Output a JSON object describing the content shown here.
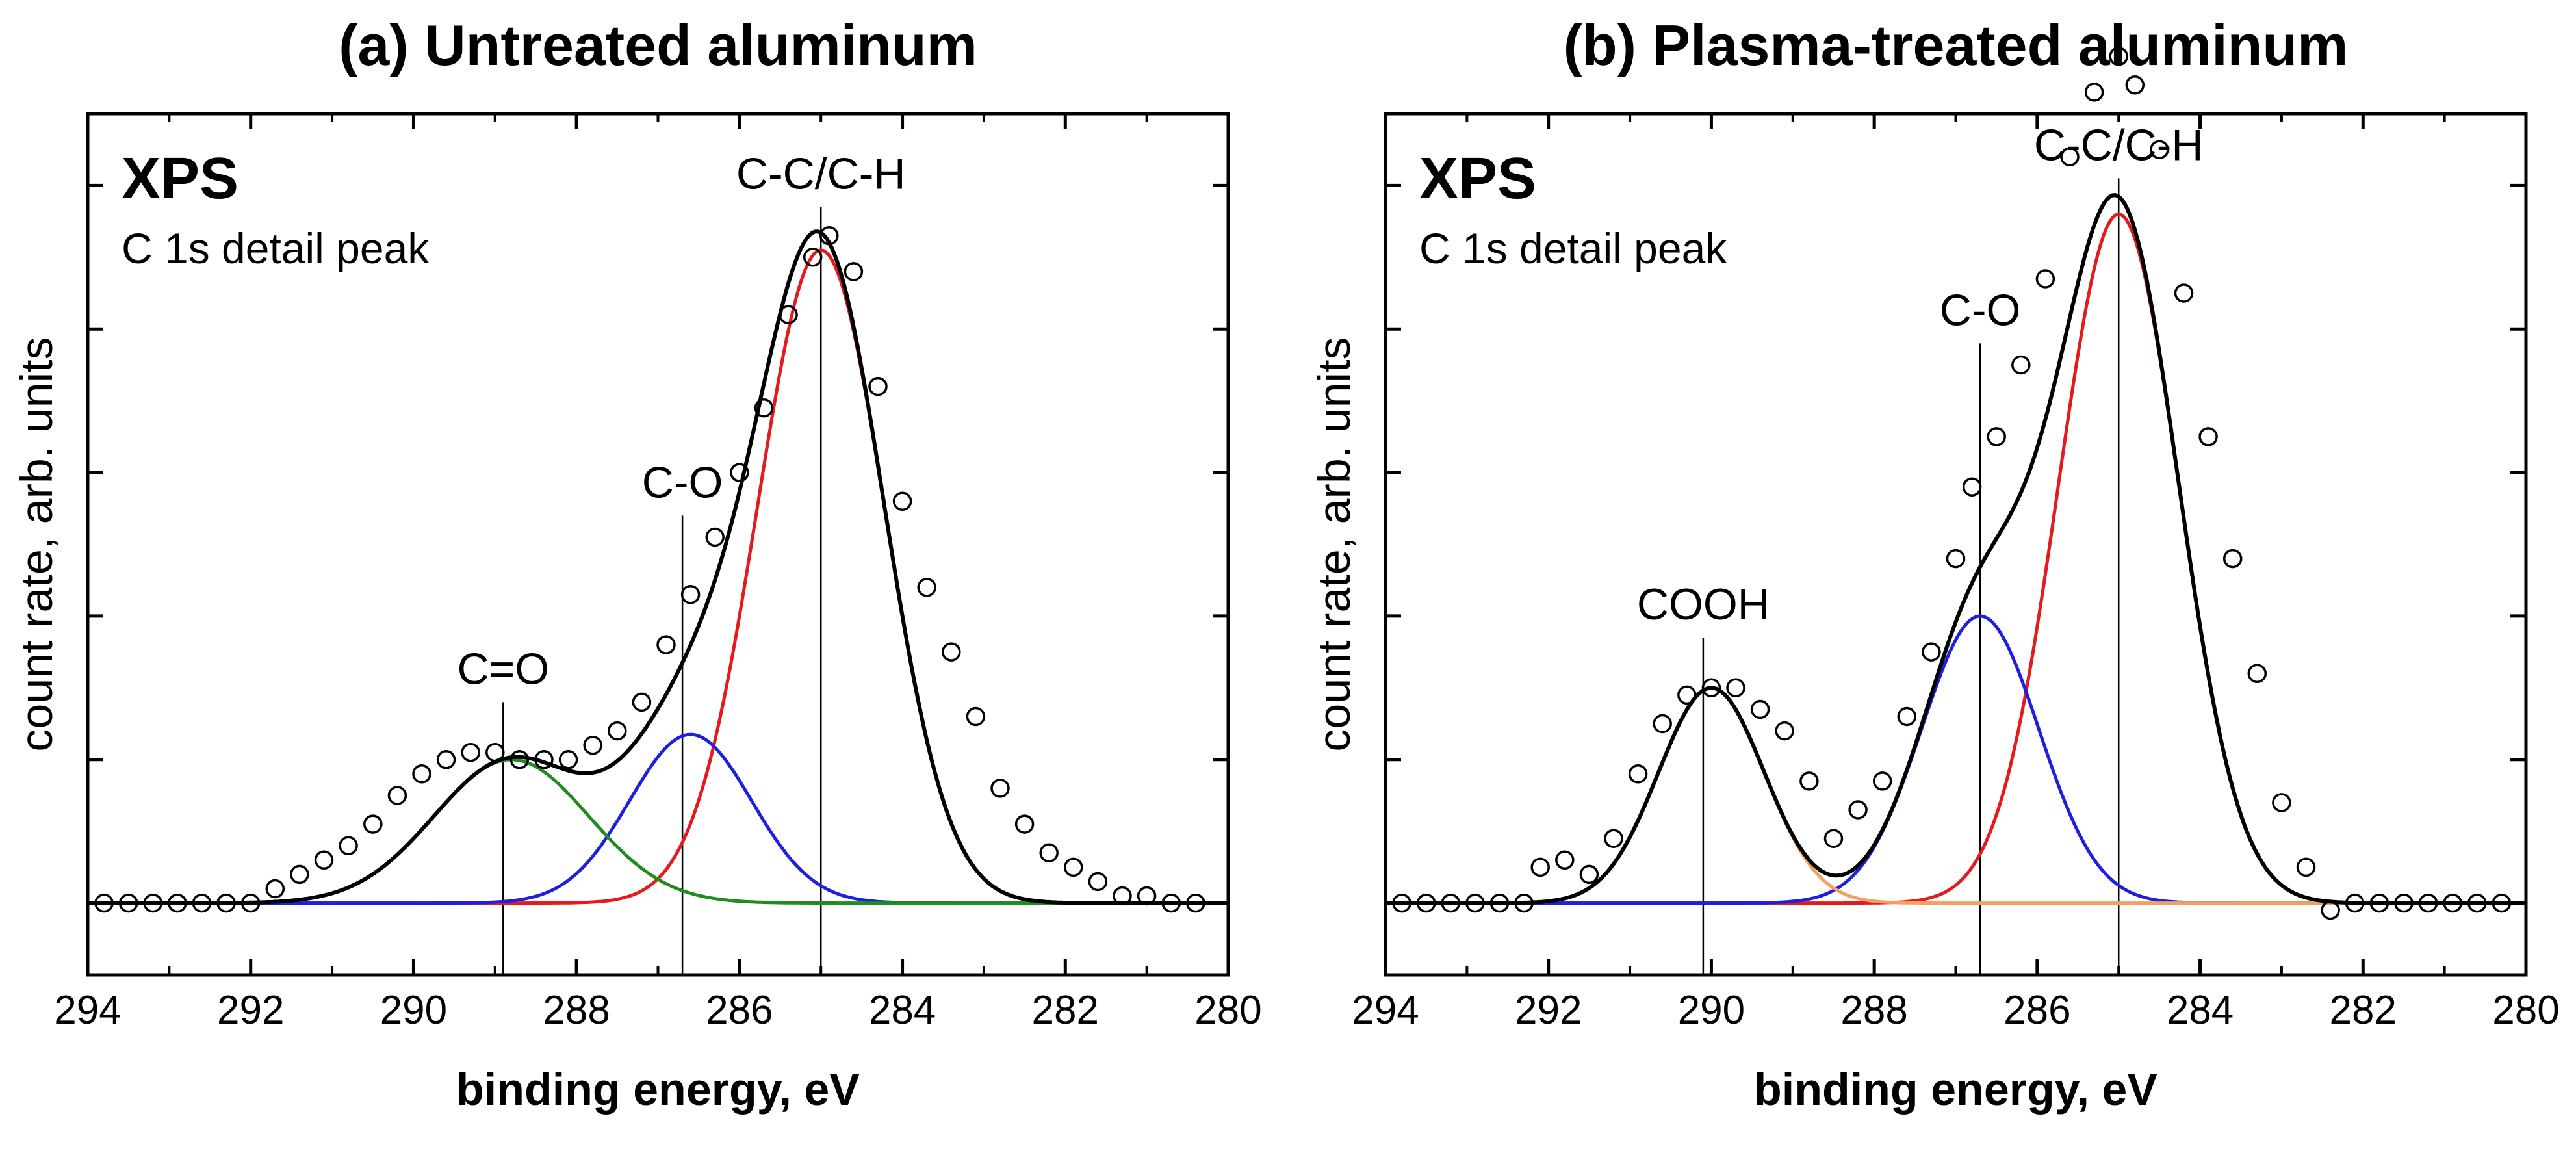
{
  "chart_data": [
    {
      "type": "line",
      "title": "(a) Untreated aluminum",
      "xlabel": "binding energy, eV",
      "ylabel": "count rate, arb. units",
      "xlim": [
        294,
        280
      ],
      "xticks": [
        294,
        292,
        290,
        288,
        286,
        284,
        282,
        280
      ],
      "xtick_labels": [
        "294",
        "292",
        "290",
        "288",
        "286",
        "284",
        "282",
        "280"
      ],
      "ylim": [
        -0.1,
        1.1
      ],
      "yticks": [
        0.2,
        0.4,
        0.6,
        0.8,
        1.0
      ],
      "ytick_labels": [
        "",
        "",
        "",
        "",
        ""
      ],
      "annotation_title": "XPS",
      "annotation_subtitle": "C 1s detail peak",
      "series": [
        {
          "name": "C-C/C-H",
          "color": "#e41a1c",
          "fn": "gauss",
          "center": 285.0,
          "amp": 0.91,
          "sigma": 0.78
        },
        {
          "name": "C-O",
          "color": "#1f1fe0",
          "fn": "gauss",
          "center": 286.6,
          "amp": 0.235,
          "sigma": 0.75
        },
        {
          "name": "C=O",
          "color": "#1e8c1e",
          "fn": "gauss",
          "center": 288.8,
          "amp": 0.2,
          "sigma": 0.95
        },
        {
          "name": "envelope",
          "color": "#000000",
          "fn": "sum"
        }
      ],
      "peak_markers": [
        {
          "label": "C-C/C-H",
          "energy": 285.0,
          "y_top": 0.97
        },
        {
          "label": "C-O",
          "energy": 286.7,
          "y_top": 0.54
        },
        {
          "label": "C=O",
          "energy": 288.9,
          "y_top": 0.28
        }
      ],
      "scatter": {
        "name": "measured",
        "x": [
          293.8,
          293.5,
          293.2,
          292.9,
          292.6,
          292.3,
          292.0,
          291.7,
          291.4,
          291.1,
          290.8,
          290.5,
          290.2,
          289.9,
          289.6,
          289.3,
          289.0,
          288.7,
          288.4,
          288.1,
          287.8,
          287.5,
          287.2,
          286.9,
          286.6,
          286.3,
          286.0,
          285.7,
          285.4,
          285.1,
          284.9,
          284.6,
          284.3,
          284.0,
          283.7,
          283.4,
          283.1,
          282.8,
          282.5,
          282.2,
          281.9,
          281.6,
          281.3,
          281.0,
          280.7,
          280.4
        ],
        "y": [
          0.0,
          0.0,
          0.0,
          0.0,
          0.0,
          0.0,
          0.0,
          0.02,
          0.04,
          0.06,
          0.08,
          0.11,
          0.15,
          0.18,
          0.2,
          0.21,
          0.21,
          0.2,
          0.2,
          0.2,
          0.22,
          0.24,
          0.28,
          0.36,
          0.43,
          0.51,
          0.6,
          0.69,
          0.82,
          0.9,
          0.93,
          0.88,
          0.72,
          0.56,
          0.44,
          0.35,
          0.26,
          0.16,
          0.11,
          0.07,
          0.05,
          0.03,
          0.01,
          0.01,
          0.0,
          0.0
        ]
      }
    },
    {
      "type": "line",
      "title": "(b) Plasma-treated aluminum",
      "xlabel": "binding energy, eV",
      "ylabel": "count rate, arb. units",
      "xlim": [
        294,
        280
      ],
      "xticks": [
        294,
        292,
        290,
        288,
        286,
        284,
        282,
        280
      ],
      "xtick_labels": [
        "294",
        "292",
        "290",
        "288",
        "286",
        "284",
        "282",
        "280"
      ],
      "ylim": [
        -0.1,
        1.1
      ],
      "yticks": [
        0.2,
        0.4,
        0.6,
        0.8,
        1.0
      ],
      "ytick_labels": [
        "",
        "",
        "",
        "",
        ""
      ],
      "annotation_title": "XPS",
      "annotation_subtitle": "C 1s detail peak",
      "series": [
        {
          "name": "C-C/C-H",
          "color": "#e41a1c",
          "fn": "gauss",
          "center": 285.0,
          "amp": 0.96,
          "sigma": 0.74
        },
        {
          "name": "C-O",
          "color": "#1f1fe0",
          "fn": "gauss",
          "center": 286.7,
          "amp": 0.4,
          "sigma": 0.72
        },
        {
          "name": "COOH",
          "color": "#f4a060",
          "fn": "gauss",
          "center": 290.0,
          "amp": 0.3,
          "sigma": 0.65
        },
        {
          "name": "envelope",
          "color": "#000000",
          "fn": "sum"
        }
      ],
      "peak_markers": [
        {
          "label": "C-C/C-H",
          "energy": 285.0,
          "y_top": 1.01
        },
        {
          "label": "C-O",
          "energy": 286.7,
          "y_top": 0.78
        },
        {
          "label": "COOH",
          "energy": 290.1,
          "y_top": 0.37
        }
      ],
      "scatter": {
        "name": "measured",
        "x": [
          293.8,
          293.5,
          293.2,
          292.9,
          292.6,
          292.3,
          292.1,
          291.8,
          291.5,
          291.2,
          290.9,
          290.6,
          290.3,
          290.0,
          289.7,
          289.4,
          289.1,
          288.8,
          288.5,
          288.2,
          287.9,
          287.6,
          287.3,
          287.0,
          286.8,
          286.5,
          286.2,
          285.9,
          285.6,
          285.3,
          285.0,
          284.8,
          284.5,
          284.2,
          283.9,
          283.6,
          283.3,
          283.0,
          282.7,
          282.4,
          282.1,
          281.8,
          281.5,
          281.2,
          280.9,
          280.6,
          280.3
        ],
        "y": [
          0.0,
          0.0,
          0.0,
          0.0,
          0.0,
          0.0,
          0.05,
          0.06,
          0.04,
          0.09,
          0.18,
          0.25,
          0.29,
          0.3,
          0.3,
          0.27,
          0.24,
          0.17,
          0.09,
          0.13,
          0.17,
          0.26,
          0.35,
          0.48,
          0.58,
          0.65,
          0.75,
          0.87,
          1.04,
          1.13,
          1.18,
          1.14,
          1.05,
          0.85,
          0.65,
          0.48,
          0.32,
          0.14,
          0.05,
          -0.01,
          0.0,
          0.0,
          0.0,
          0.0,
          0.0,
          0.0,
          0.0
        ]
      }
    }
  ]
}
